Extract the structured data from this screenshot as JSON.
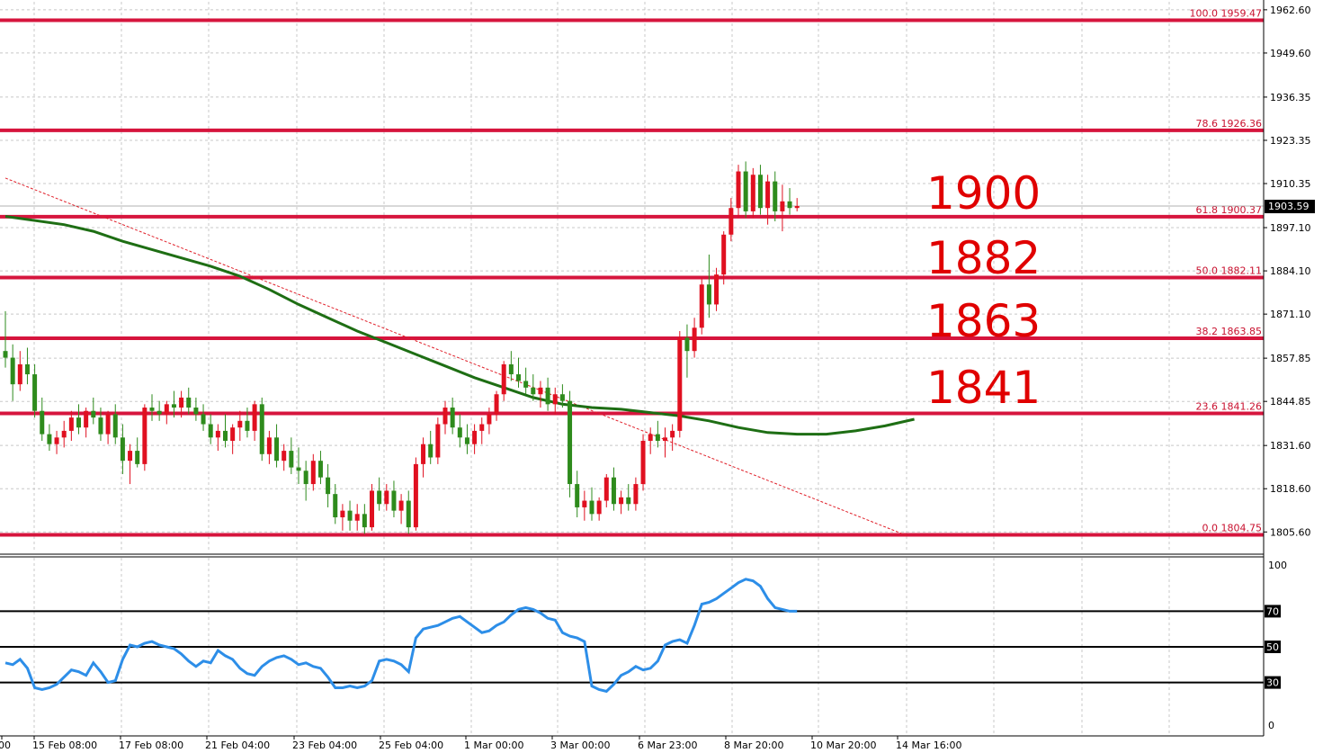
{
  "chart_data": [
    {
      "type": "candlestick",
      "title": "",
      "ylim": [
        1800.0,
        1965.0
      ],
      "yticks": [
        "1962.60",
        "1949.60",
        "1936.35",
        "1923.35",
        "1910.35",
        "1897.10",
        "1884.10",
        "1871.10",
        "1857.85",
        "1844.85",
        "1831.60",
        "1818.60",
        "1805.60"
      ],
      "x_labels": [
        "00",
        "15 Feb 08:00",
        "17 Feb 08:00",
        "21 Feb 04:00",
        "23 Feb 04:00",
        "25 Feb 04:00",
        "1 Mar 00:00",
        "3 Mar 00:00",
        "6 Mar 23:00",
        "8 Mar 20:00",
        "10 Mar 20:00",
        "14 Mar 16:00"
      ],
      "current_price": "1903.59",
      "fib_levels": [
        {
          "label": "100.0 1959.47",
          "value": 1959.47
        },
        {
          "label": "78.6 1926.36",
          "value": 1926.36
        },
        {
          "label": "61.8 1900.37",
          "value": 1900.37
        },
        {
          "label": "50.0 1882.11",
          "value": 1882.11
        },
        {
          "label": "38.2 1863.85",
          "value": 1863.85
        },
        {
          "label": "23.6 1841.26",
          "value": 1841.26
        },
        {
          "label": "0.0 1804.75",
          "value": 1804.75
        }
      ],
      "annotations": [
        "1900",
        "1882",
        "1863",
        "1841"
      ],
      "moving_average": [
        [
          0,
          1900.5
        ],
        [
          8,
          1898
        ],
        [
          12,
          1896
        ],
        [
          16,
          1893
        ],
        [
          20,
          1890.5
        ],
        [
          24,
          1888
        ],
        [
          28,
          1885.5
        ],
        [
          32,
          1882.5
        ],
        [
          36,
          1878.5
        ],
        [
          40,
          1874
        ],
        [
          44,
          1870
        ],
        [
          48,
          1866
        ],
        [
          52,
          1862.5
        ],
        [
          56,
          1859
        ],
        [
          60,
          1855.5
        ],
        [
          64,
          1852
        ],
        [
          68,
          1849
        ],
        [
          72,
          1846
        ],
        [
          76,
          1844
        ],
        [
          80,
          1843
        ],
        [
          84,
          1842.5
        ],
        [
          88,
          1841.5
        ],
        [
          92,
          1840.5
        ],
        [
          96,
          1839
        ],
        [
          100,
          1837
        ],
        [
          104,
          1835.5
        ],
        [
          108,
          1835
        ],
        [
          112,
          1835
        ],
        [
          116,
          1836
        ],
        [
          120,
          1837.5
        ],
        [
          124,
          1839.5
        ]
      ],
      "trendline": [
        [
          0,
          1912
        ],
        [
          123,
          1804.5
        ]
      ],
      "candles": [
        [
          1860,
          1872,
          1855,
          1858
        ],
        [
          1858,
          1862,
          1845,
          1850
        ],
        [
          1850,
          1860,
          1848,
          1856
        ],
        [
          1856,
          1861,
          1850,
          1853
        ],
        [
          1853,
          1856,
          1840,
          1842
        ],
        [
          1842,
          1846,
          1833,
          1835
        ],
        [
          1835,
          1838,
          1830,
          1832
        ],
        [
          1832,
          1836,
          1829,
          1834
        ],
        [
          1834,
          1839,
          1831,
          1836
        ],
        [
          1836,
          1842,
          1833,
          1840
        ],
        [
          1840,
          1844,
          1835,
          1837
        ],
        [
          1837,
          1843,
          1834,
          1842
        ],
        [
          1842,
          1846,
          1838,
          1840
        ],
        [
          1840,
          1843,
          1833,
          1835
        ],
        [
          1835,
          1842,
          1832,
          1841
        ],
        [
          1841,
          1844,
          1832,
          1834
        ],
        [
          1834,
          1838,
          1823,
          1827
        ],
        [
          1827,
          1832,
          1820,
          1830
        ],
        [
          1830,
          1834,
          1825,
          1826
        ],
        [
          1826,
          1844,
          1824,
          1843
        ],
        [
          1843,
          1847,
          1839,
          1842
        ],
        [
          1842,
          1845,
          1839,
          1841
        ],
        [
          1841,
          1845,
          1838,
          1844
        ],
        [
          1844,
          1848,
          1840,
          1843
        ],
        [
          1843,
          1848,
          1840,
          1846
        ],
        [
          1846,
          1849,
          1841,
          1843
        ],
        [
          1843,
          1846,
          1839,
          1841
        ],
        [
          1841,
          1844,
          1836,
          1838
        ],
        [
          1838,
          1841,
          1832,
          1834
        ],
        [
          1834,
          1838,
          1830,
          1836
        ],
        [
          1836,
          1841,
          1831,
          1833
        ],
        [
          1833,
          1838,
          1829,
          1837
        ],
        [
          1837,
          1842,
          1833,
          1839
        ],
        [
          1839,
          1843,
          1834,
          1836
        ],
        [
          1836,
          1845,
          1833,
          1844
        ],
        [
          1844,
          1846,
          1827,
          1829
        ],
        [
          1829,
          1836,
          1826,
          1834
        ],
        [
          1834,
          1838,
          1825,
          1827
        ],
        [
          1827,
          1832,
          1824,
          1830
        ],
        [
          1830,
          1834,
          1823,
          1825
        ],
        [
          1825,
          1831,
          1820,
          1824
        ],
        [
          1824,
          1827,
          1815,
          1820
        ],
        [
          1820,
          1829,
          1818,
          1827
        ],
        [
          1827,
          1830,
          1820,
          1822
        ],
        [
          1822,
          1826,
          1813,
          1817
        ],
        [
          1817,
          1820,
          1808,
          1810
        ],
        [
          1810,
          1814,
          1806,
          1812
        ],
        [
          1812,
          1815,
          1806,
          1809
        ],
        [
          1809,
          1814,
          1806,
          1811
        ],
        [
          1811,
          1814,
          1805,
          1807
        ],
        [
          1807,
          1820,
          1806,
          1818
        ],
        [
          1818,
          1822,
          1812,
          1814
        ],
        [
          1814,
          1820,
          1812,
          1818
        ],
        [
          1818,
          1821,
          1810,
          1812
        ],
        [
          1812,
          1817,
          1808,
          1815
        ],
        [
          1815,
          1818,
          1805,
          1807
        ],
        [
          1807,
          1828,
          1806,
          1826
        ],
        [
          1826,
          1834,
          1822,
          1832
        ],
        [
          1832,
          1836,
          1826,
          1828
        ],
        [
          1828,
          1840,
          1826,
          1838
        ],
        [
          1838,
          1845,
          1835,
          1843
        ],
        [
          1843,
          1846,
          1835,
          1837
        ],
        [
          1837,
          1841,
          1831,
          1834
        ],
        [
          1834,
          1838,
          1829,
          1832
        ],
        [
          1832,
          1838,
          1829,
          1836
        ],
        [
          1836,
          1840,
          1832,
          1838
        ],
        [
          1838,
          1843,
          1835,
          1841
        ],
        [
          1841,
          1848,
          1839,
          1847
        ],
        [
          1847,
          1857,
          1845,
          1856
        ],
        [
          1856,
          1860,
          1851,
          1853
        ],
        [
          1853,
          1858,
          1849,
          1851
        ],
        [
          1851,
          1855,
          1847,
          1849
        ],
        [
          1849,
          1853,
          1845,
          1847
        ],
        [
          1847,
          1851,
          1843,
          1849
        ],
        [
          1849,
          1852,
          1842,
          1844
        ],
        [
          1844,
          1849,
          1841,
          1847
        ],
        [
          1847,
          1850,
          1843,
          1845
        ],
        [
          1845,
          1848,
          1816,
          1820
        ],
        [
          1820,
          1824,
          1810,
          1813
        ],
        [
          1813,
          1818,
          1809,
          1815
        ],
        [
          1815,
          1819,
          1809,
          1811
        ],
        [
          1811,
          1816,
          1809,
          1815
        ],
        [
          1815,
          1823,
          1813,
          1822
        ],
        [
          1822,
          1825,
          1812,
          1814
        ],
        [
          1814,
          1818,
          1811,
          1816
        ],
        [
          1816,
          1820,
          1812,
          1814
        ],
        [
          1814,
          1822,
          1812,
          1820
        ],
        [
          1820,
          1835,
          1818,
          1833
        ],
        [
          1833,
          1837,
          1829,
          1835
        ],
        [
          1835,
          1839,
          1831,
          1833
        ],
        [
          1833,
          1837,
          1828,
          1834
        ],
        [
          1834,
          1838,
          1830,
          1836
        ],
        [
          1836,
          1866,
          1834,
          1864
        ],
        [
          1864,
          1868,
          1852,
          1860
        ],
        [
          1860,
          1870,
          1858,
          1867
        ],
        [
          1867,
          1882,
          1865,
          1880
        ],
        [
          1880,
          1889,
          1870,
          1874
        ],
        [
          1874,
          1885,
          1872,
          1883
        ],
        [
          1883,
          1896,
          1880,
          1895
        ],
        [
          1895,
          1906,
          1893,
          1903
        ],
        [
          1903,
          1916,
          1900,
          1914
        ],
        [
          1914,
          1917,
          1900,
          1902
        ],
        [
          1902,
          1915,
          1900,
          1913
        ],
        [
          1913,
          1916,
          1901,
          1903
        ],
        [
          1903,
          1913,
          1898,
          1911
        ],
        [
          1911,
          1914,
          1899,
          1902
        ],
        [
          1902,
          1910,
          1896,
          1905
        ],
        [
          1905,
          1909,
          1901,
          1903
        ],
        [
          1903,
          1906,
          1902,
          1903.59
        ]
      ]
    },
    {
      "type": "line",
      "title": "",
      "ylim": [
        0,
        100
      ],
      "yticks": [
        "100",
        "70",
        "50",
        "30",
        "0"
      ],
      "levels": [
        70,
        50,
        30
      ],
      "series": [
        {
          "values": [
            41,
            40,
            43,
            38,
            27,
            26,
            27,
            29,
            33,
            37,
            36,
            34,
            41,
            36,
            30,
            31,
            43,
            51,
            50,
            52,
            53,
            51,
            50,
            49,
            46,
            42,
            39,
            42,
            41,
            48,
            45,
            43,
            38,
            35,
            34,
            39,
            42,
            44,
            45,
            43,
            40,
            41,
            39,
            38,
            33,
            27,
            27,
            28,
            27,
            28,
            31,
            42,
            43,
            42,
            40,
            36,
            55,
            60,
            61,
            62,
            64,
            66,
            67,
            64,
            61,
            58,
            59,
            62,
            64,
            68,
            71,
            72,
            71,
            69,
            66,
            65,
            58,
            56,
            55,
            53,
            28,
            26,
            25,
            29,
            34,
            36,
            39,
            37,
            38,
            42,
            51,
            53,
            54,
            52,
            62,
            74,
            75,
            77,
            80,
            83,
            86,
            88,
            87,
            84,
            77,
            72,
            71,
            70,
            70
          ]
        }
      ]
    }
  ]
}
